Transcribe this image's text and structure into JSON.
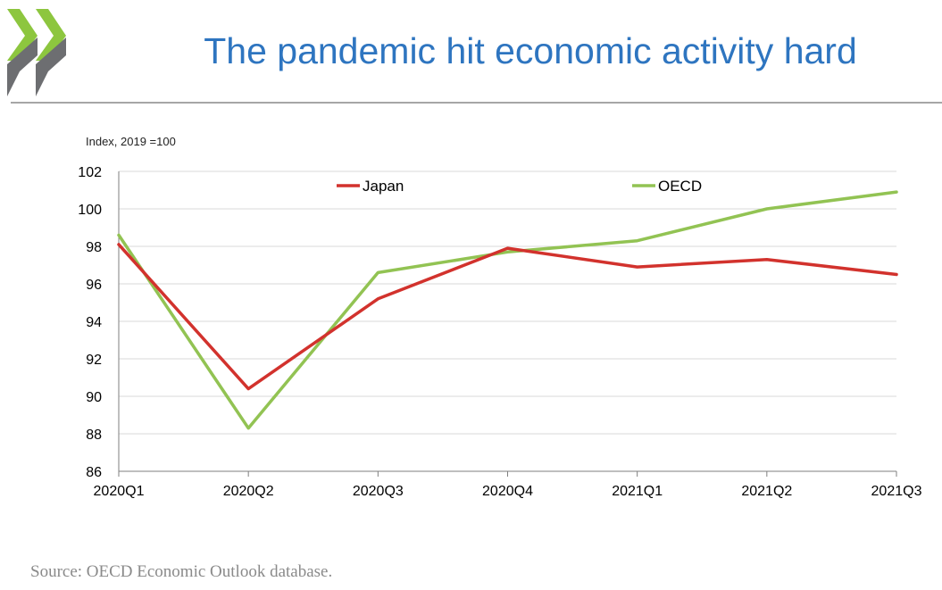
{
  "header": {
    "title": "The pandemic hit economic activity hard",
    "logo_icon": "oecd-chevrons-icon"
  },
  "colors": {
    "title": "#2e75c0",
    "japan": "#d2322d",
    "oecd": "#92c353",
    "logo_green": "#8dc63f",
    "logo_gray": "#6d6e71",
    "grid": "#d9d9d9",
    "source": "#8a8a8a"
  },
  "chart_data": {
    "type": "line",
    "title": "The pandemic hit economic activity hard",
    "ylabel": "Index, 2019 =100",
    "xlabel": "",
    "categories": [
      "2020Q1",
      "2020Q2",
      "2020Q3",
      "2020Q4",
      "2021Q1",
      "2021Q2",
      "2021Q3"
    ],
    "ylim": [
      86,
      102
    ],
    "yticks": [
      86,
      88,
      90,
      92,
      94,
      96,
      98,
      100,
      102
    ],
    "grid": true,
    "legend_position": "top",
    "series": [
      {
        "name": "Japan",
        "color": "#d2322d",
        "values": [
          98.1,
          90.4,
          95.2,
          97.9,
          96.9,
          97.3,
          96.5
        ]
      },
      {
        "name": "OECD",
        "color": "#92c353",
        "values": [
          98.6,
          88.3,
          96.6,
          97.7,
          98.3,
          100.0,
          100.9
        ]
      }
    ]
  },
  "footer": {
    "source": "Source: OECD Economic Outlook database."
  }
}
